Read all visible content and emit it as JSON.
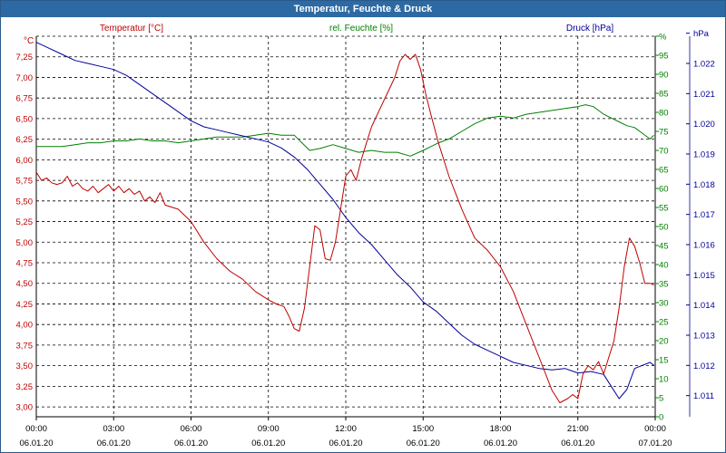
{
  "window": {
    "title": "Temperatur, Feuchte & Druck"
  },
  "colors": {
    "temperature": "#c00000",
    "humidity": "#008000",
    "pressure": "#00009a",
    "grid": "#000000",
    "titlebar": "#2d6aa3"
  },
  "chart_data": {
    "type": "line",
    "title": "Temperatur, Feuchte & Druck",
    "grid": true,
    "legend": "top",
    "x_ticks": [
      {
        "time": "00:00",
        "date": "06.01.20"
      },
      {
        "time": "03:00",
        "date": "06.01.20"
      },
      {
        "time": "06:00",
        "date": "06.01.20"
      },
      {
        "time": "09:00",
        "date": "06.01.20"
      },
      {
        "time": "12:00",
        "date": "06.01.20"
      },
      {
        "time": "15:00",
        "date": "06.01.20"
      },
      {
        "time": "18:00",
        "date": "06.01.20"
      },
      {
        "time": "21:00",
        "date": "06.01.20"
      },
      {
        "time": "00:00",
        "date": "07.01.20"
      }
    ],
    "axes": {
      "temperature": {
        "unit": "°C",
        "ylim": [
          2.88,
          7.5
        ],
        "ticks": [
          "3,00",
          "3,25",
          "3,50",
          "3,75",
          "4,00",
          "4,25",
          "4,50",
          "4,75",
          "5,00",
          "5,25",
          "5,50",
          "5,75",
          "6,00",
          "6,25",
          "6,50",
          "6,75",
          "7,00",
          "7,25"
        ]
      },
      "humidity": {
        "unit": "%",
        "ylim": [
          0,
          100
        ],
        "ticks": [
          "0",
          "5",
          "10",
          "15",
          "20",
          "25",
          "30",
          "35",
          "40",
          "45",
          "50",
          "55",
          "60",
          "65",
          "70",
          "75",
          "80",
          "85",
          "90",
          "95",
          "%"
        ]
      },
      "pressure": {
        "unit": "hPa",
        "ylim": [
          1010.3,
          1022.9
        ],
        "ticks": [
          "1.011",
          "1.012",
          "1.013",
          "1.014",
          "1.015",
          "1.016",
          "1.017",
          "1.018",
          "1.019",
          "1.020",
          "1.021",
          "1.022",
          "hPa"
        ]
      }
    },
    "series": [
      {
        "name": "Temperatur [°C]",
        "axis": "temperature",
        "x": [
          0,
          0.2,
          0.4,
          0.6,
          0.8,
          1.0,
          1.2,
          1.4,
          1.6,
          1.8,
          2.0,
          2.2,
          2.4,
          2.6,
          2.8,
          3.0,
          3.2,
          3.4,
          3.6,
          3.8,
          4.0,
          4.2,
          4.4,
          4.6,
          4.8,
          5.0,
          5.5,
          6.0,
          6.5,
          7.0,
          7.5,
          8.0,
          8.5,
          9.0,
          9.3,
          9.6,
          9.8,
          10.0,
          10.2,
          10.4,
          10.6,
          10.8,
          11.0,
          11.2,
          11.4,
          11.6,
          11.8,
          12.0,
          12.2,
          12.4,
          12.6,
          12.8,
          13.0,
          13.3,
          13.6,
          13.9,
          14.1,
          14.3,
          14.5,
          14.7,
          14.9,
          15.1,
          15.3,
          15.6,
          16.0,
          16.5,
          17.0,
          17.5,
          18.0,
          18.5,
          19.0,
          19.5,
          20.0,
          20.3,
          20.6,
          20.8,
          21.0,
          21.2,
          21.4,
          21.6,
          21.8,
          22.0,
          22.2,
          22.4,
          22.6,
          22.8,
          23.0,
          23.2,
          23.4,
          23.6,
          23.8,
          23.95
        ],
        "values": [
          5.85,
          5.75,
          5.78,
          5.72,
          5.7,
          5.72,
          5.8,
          5.68,
          5.72,
          5.65,
          5.62,
          5.68,
          5.6,
          5.65,
          5.7,
          5.62,
          5.68,
          5.6,
          5.65,
          5.58,
          5.62,
          5.5,
          5.55,
          5.48,
          5.6,
          5.45,
          5.4,
          5.25,
          5.0,
          4.8,
          4.65,
          4.55,
          4.4,
          4.3,
          4.25,
          4.22,
          4.1,
          3.95,
          3.92,
          4.2,
          4.7,
          5.2,
          5.15,
          4.8,
          4.78,
          5.0,
          5.4,
          5.8,
          5.88,
          5.75,
          6.0,
          6.2,
          6.4,
          6.6,
          6.8,
          7.0,
          7.2,
          7.28,
          7.22,
          7.28,
          7.1,
          6.8,
          6.55,
          6.2,
          5.8,
          5.4,
          5.05,
          4.9,
          4.7,
          4.4,
          4.0,
          3.6,
          3.2,
          3.05,
          3.1,
          3.15,
          3.1,
          3.4,
          3.5,
          3.45,
          3.55,
          3.4,
          3.6,
          3.8,
          4.2,
          4.7,
          5.05,
          4.95,
          4.75,
          4.5,
          4.5,
          4.48
        ]
      },
      {
        "name": "rel. Feuchte [%]",
        "axis": "humidity",
        "x": [
          0,
          0.5,
          1.0,
          1.5,
          2.0,
          2.5,
          3.0,
          3.5,
          4.0,
          4.5,
          5.0,
          5.5,
          6.0,
          6.5,
          7.0,
          7.5,
          8.0,
          8.5,
          9.0,
          9.5,
          10.0,
          10.3,
          10.6,
          11.0,
          11.5,
          12.0,
          12.5,
          13.0,
          13.5,
          14.0,
          14.5,
          15.0,
          15.3,
          15.6,
          16.0,
          16.5,
          17.0,
          17.5,
          18.0,
          18.5,
          19.0,
          19.5,
          20.0,
          20.5,
          21.0,
          21.3,
          21.6,
          21.8,
          22.0,
          22.3,
          22.6,
          22.9,
          23.2,
          23.5,
          23.8,
          23.95
        ],
        "values": [
          71,
          71,
          71,
          71.5,
          72,
          72,
          72.5,
          72.5,
          73,
          72.5,
          72.5,
          72,
          72.5,
          73,
          73.5,
          73.5,
          73.5,
          74,
          74.5,
          74,
          74,
          72,
          70,
          70.5,
          71.5,
          70.5,
          69.5,
          70,
          69.5,
          69.5,
          68.5,
          70,
          71,
          72,
          73,
          75,
          77,
          78.5,
          79,
          78.5,
          79.5,
          80,
          80.5,
          81,
          81.5,
          82,
          81.5,
          80.5,
          79.5,
          78.5,
          77.5,
          76.5,
          76,
          74.5,
          73,
          74
        ]
      },
      {
        "name": "Druck [hPa]",
        "axis": "pressure",
        "x": [
          0,
          0.5,
          1.0,
          1.5,
          2.0,
          2.5,
          3.0,
          3.5,
          4.0,
          4.5,
          5.0,
          5.5,
          6.0,
          6.5,
          7.0,
          7.5,
          8.0,
          8.5,
          9.0,
          9.5,
          10.0,
          10.5,
          11.0,
          11.5,
          12.0,
          12.5,
          13.0,
          13.5,
          14.0,
          14.5,
          15.0,
          15.5,
          16.0,
          16.5,
          17.0,
          17.5,
          18.0,
          18.5,
          19.0,
          19.5,
          20.0,
          20.5,
          21.0,
          21.5,
          22.0,
          22.3,
          22.6,
          22.9,
          23.2,
          23.5,
          23.8,
          23.95
        ],
        "values": [
          1022.7,
          1022.5,
          1022.3,
          1022.1,
          1022.0,
          1021.9,
          1021.8,
          1021.6,
          1021.3,
          1021.0,
          1020.7,
          1020.4,
          1020.1,
          1019.9,
          1019.8,
          1019.7,
          1019.6,
          1019.5,
          1019.4,
          1019.2,
          1018.9,
          1018.5,
          1018.0,
          1017.5,
          1016.9,
          1016.4,
          1016.0,
          1015.5,
          1015.0,
          1014.6,
          1014.1,
          1013.8,
          1013.4,
          1013.0,
          1012.7,
          1012.5,
          1012.3,
          1012.1,
          1012.0,
          1011.9,
          1011.85,
          1011.9,
          1011.75,
          1011.8,
          1011.7,
          1011.3,
          1010.9,
          1011.2,
          1011.9,
          1012.0,
          1012.1,
          1012.0
        ]
      }
    ]
  }
}
